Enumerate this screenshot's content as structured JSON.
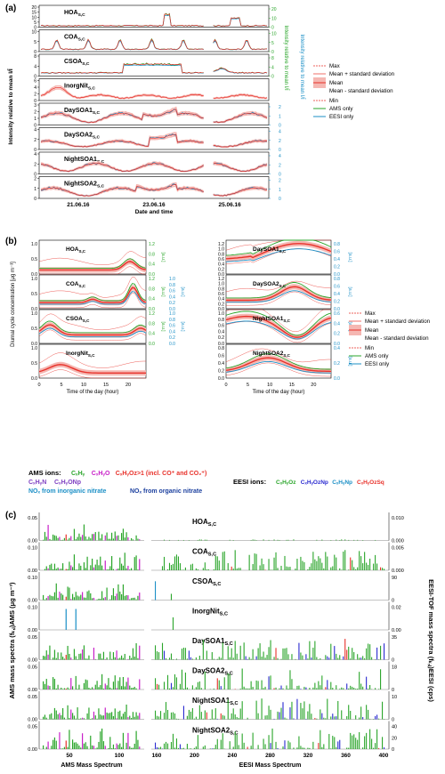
{
  "colors": {
    "ams": "#2aa52a",
    "eesi": "#1b8fc6",
    "mean": "#e8312a",
    "band": "#f5b7b2",
    "minmax": "#e8312a",
    "cxh": "#2aa52a",
    "cxhyo": "#c81fc8",
    "cxhyoz": "#e8312a",
    "cxhyn": "#7e3fc2",
    "nox_inorg": "#1b8fc6",
    "nox_org": "#1b3f9e",
    "eesi_chon": "#1b8fc6",
    "eesi_chons": "#e8312a",
    "eesi_cho": "#2aa52a",
    "eesi_chn": "#2a2ad0"
  },
  "panel_a": {
    "label": "(a)",
    "ylabel": "Intensity relative to mean",
    "ylabel_sym": "I/Ī",
    "right_label_green": "Intensity relative to mean",
    "right_label_blue": "Intensity relative to mean",
    "xlabel": "Date and time",
    "xticks": [
      "21.06.16",
      "23.06.16",
      "25.06.16"
    ],
    "legend": {
      "max": "Max",
      "mean_plus_sd": "Mean + standard deviation",
      "mean": "Mean",
      "mean_minus_sd": "Mean - standard deviation",
      "min": "Min",
      "ams_only": "AMS only",
      "eesi_only": "EESI only"
    },
    "factors": [
      {
        "name": "HOA",
        "sub": "S,C",
        "ylim": [
          0,
          20
        ],
        "ticks": [
          "0",
          "5",
          "10",
          "15",
          "20"
        ],
        "rticks": [
          "0",
          "10",
          "20"
        ]
      },
      {
        "name": "COA",
        "sub": "S,C",
        "ylim": [
          0,
          10
        ],
        "ticks": [
          "0",
          "5",
          "10"
        ],
        "rticks": [
          "0",
          "5",
          "10"
        ]
      },
      {
        "name": "CSOA",
        "sub": "S,C",
        "ylim": [
          0,
          8
        ],
        "ticks": [
          "0",
          "4",
          "8"
        ],
        "rticks": [
          "0",
          "4",
          "8"
        ]
      },
      {
        "name": "InorgNit",
        "sub": "S,C",
        "ylim": [
          0,
          6
        ],
        "ticks": [
          "0",
          "2",
          "4",
          "6"
        ],
        "rticks": []
      },
      {
        "name": "DaySOA1",
        "sub": "S,C",
        "ylim": [
          0,
          3
        ],
        "ticks": [
          "0",
          "1",
          "2",
          "3"
        ],
        "rticks": [
          "0",
          "1",
          "2"
        ]
      },
      {
        "name": "DaySOA2",
        "sub": "S,C",
        "ylim": [
          0,
          4
        ],
        "ticks": [
          "0",
          "2",
          "4"
        ],
        "rticks": [
          "0",
          "2",
          "4"
        ]
      },
      {
        "name": "NightSOA1",
        "sub": "S,C",
        "ylim": [
          0,
          4
        ],
        "ticks": [
          "0",
          "2",
          "4"
        ],
        "rticks": [
          "0",
          "2",
          "4"
        ]
      },
      {
        "name": "NightSOA2",
        "sub": "S,C",
        "ylim": [
          0,
          2
        ],
        "ticks": [
          "0",
          "1",
          "2"
        ],
        "rticks": [
          "0",
          "1",
          "2"
        ]
      }
    ]
  },
  "panel_b": {
    "label": "(b)",
    "ylabel": "Diurnal cycle concentration [μg m⁻³]",
    "xlabel": "Time of the day (hour)",
    "xticks": [
      "0",
      "5",
      "10",
      "15",
      "20"
    ],
    "rlabel": "[a.u.]",
    "legend": {
      "max": "Max",
      "mean_plus_sd": "Mean + standard deviation",
      "mean": "Mean",
      "mean_minus_sd": "Mean - standard deviation",
      "min": "Min",
      "ams_only": "AMS only",
      "eesi_only": "EESI only"
    },
    "left": [
      {
        "name": "HOA",
        "sub": "S,C",
        "ticks": [
          "0.0",
          "0.5",
          "1.0"
        ],
        "rticks": [
          "0.0",
          "0.4",
          "0.8",
          "1.2"
        ],
        "bticks": []
      },
      {
        "name": "COA",
        "sub": "S,C",
        "ticks": [
          "0.0",
          "0.5",
          "1.0"
        ],
        "rticks": [
          "0.0",
          "0.4",
          "0.8",
          "1.2"
        ],
        "bticks": [
          "0.0",
          "0.2",
          "0.4",
          "0.6",
          "0.8",
          "1.0"
        ]
      },
      {
        "name": "CSOA",
        "sub": "S,C",
        "ticks": [
          "0.0",
          "0.5",
          "1.0"
        ],
        "rticks": [
          "0.0",
          "0.4",
          "0.8",
          "1.2"
        ],
        "bticks": [
          "0.0",
          "0.2",
          "0.4",
          "0.6",
          "0.8",
          "1.0"
        ]
      },
      {
        "name": "InorgNit",
        "sub": "S,C",
        "ticks": [
          "0.0",
          "0.5",
          "1.0"
        ],
        "rticks": [],
        "bticks": []
      }
    ],
    "right": [
      {
        "name": "DaySOA1",
        "sub": "S,C",
        "ticks": [
          "0.0",
          "0.2",
          "0.4",
          "0.6",
          "0.8",
          "1.0",
          "1.2"
        ],
        "rticks": [
          "0.0",
          "0.2",
          "0.4",
          "0.6",
          "0.8"
        ]
      },
      {
        "name": "DaySOA2",
        "sub": "S,C",
        "ticks": [
          "0.0",
          "0.2",
          "0.4",
          "0.6",
          "0.8",
          "1.0",
          "1.2"
        ],
        "rticks": [
          "0.0",
          "0.2",
          "0.4",
          "0.6",
          "0.8"
        ]
      },
      {
        "name": "NightSOA1",
        "sub": "S,C",
        "ticks": [
          "0.0",
          "0.2",
          "0.4",
          "0.6",
          "0.8",
          "1.0"
        ],
        "rticks": [
          "0.0",
          "0.2",
          "0.4",
          "0.6"
        ]
      },
      {
        "name": "NightSOA2",
        "sub": "S,C",
        "ticks": [
          "0.0",
          "0.2",
          "0.4",
          "0.6",
          "0.8"
        ],
        "rticks": [
          "0.0",
          "0.2",
          "0.4"
        ]
      }
    ]
  },
  "ion_legend": {
    "ams_title": "AMS ions:",
    "ams_items": [
      {
        "text": "CₓHᵧ",
        "color": "#2aa52a"
      },
      {
        "text": "CₓHᵧO",
        "color": "#c81fc8"
      },
      {
        "text": "CₓHᵧOz>1 (incl. CO⁺ and CO₂⁺)",
        "color": "#e8312a"
      }
    ],
    "ams_items2": [
      {
        "text": "CₓHᵧN",
        "color": "#7e3fc2"
      },
      {
        "text": "CₓHᵧONp",
        "color": "#7e3fc2"
      }
    ],
    "nox_inorg": "NOₓ from inorganic nitrate",
    "nox_org": "NOₓ from organic nitrate",
    "eesi_title": "EESI ions:",
    "eesi_items": [
      {
        "text": "CₓHᵧOz",
        "color": "#2aa52a"
      },
      {
        "text": "CₓHᵧOzNp",
        "color": "#2a2ad0"
      },
      {
        "text": "CₓHᵧNp",
        "color": "#1b8fc6"
      },
      {
        "text": "CₓHᵧOzSq",
        "color": "#e8312a"
      }
    ]
  },
  "panel_c": {
    "label": "(c)",
    "ylabel_left": "AMS mass spectra (fₖ,ⱼ)AMS (μg m⁻³)",
    "ylabel_right": "EESI-TOF mass spectra (fₖ,ⱼ)EESI (cps)",
    "xlabel_left": "AMS Mass Spectrum",
    "xlabel_right": "EESI Mass Spectrum",
    "ams_xticks": [
      "50",
      "100"
    ],
    "eesi_xticks": [
      "160",
      "200",
      "240",
      "280",
      "320",
      "360",
      "400"
    ],
    "factors": [
      {
        "name": "HOA",
        "sub": "S,C",
        "lticks": [
          "0.00",
          "0.05"
        ],
        "rticks": [
          "0.000",
          "0.010"
        ]
      },
      {
        "name": "COA",
        "sub": "S,C",
        "lticks": [
          "0.00",
          "0.10"
        ],
        "rticks": [
          "0.000",
          "0.005"
        ]
      },
      {
        "name": "CSOA",
        "sub": "S,C",
        "lticks": [
          "0.00",
          "0.10"
        ],
        "rticks": [
          "0",
          "90"
        ]
      },
      {
        "name": "InorgNit",
        "sub": "S,C",
        "lticks": [
          "0.00",
          "0.10"
        ],
        "rticks": [
          "0.00",
          "0.02"
        ]
      },
      {
        "name": "DaySOA1",
        "sub": "S,C",
        "lticks": [
          "0.00",
          "0.05"
        ],
        "rticks": [
          "0",
          "35"
        ]
      },
      {
        "name": "DaySOA2",
        "sub": "S,C",
        "lticks": [
          "0.00",
          "0.05"
        ],
        "rticks": [
          "0",
          "18"
        ]
      },
      {
        "name": "NightSOA1",
        "sub": "S,C",
        "lticks": [
          "0.00",
          "0.05"
        ],
        "rticks": [
          "0",
          "10"
        ]
      },
      {
        "name": "NightSOA2",
        "sub": "S,C",
        "lticks": [
          "0.00",
          "0.05"
        ],
        "rticks": [
          "0",
          "20",
          "40"
        ]
      }
    ]
  }
}
